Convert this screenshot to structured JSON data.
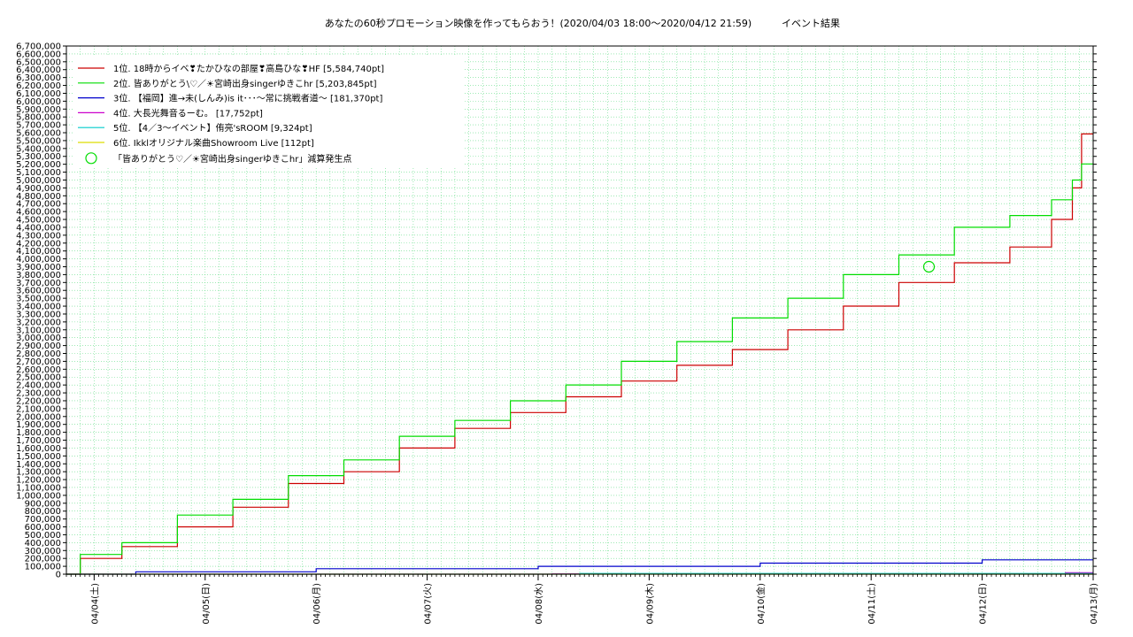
{
  "chart_data": {
    "type": "line",
    "title": "あなたの60秒プロモーション映像を作ってもらおう！(2020/04/03 18:00～2020/04/12 21:59)",
    "subtitle": "イベント結果",
    "xlabel": "",
    "ylabel": "",
    "ylim": [
      0,
      6700000
    ],
    "xlim": [
      "2020/04/03 18:00",
      "2020/04/13 00:00"
    ],
    "grid": true,
    "legend_position": "top-left",
    "x_tick_labels": [
      "04/04(土)",
      "04/05(日)",
      "04/06(月)",
      "04/07(火)",
      "04/08(水)",
      "04/09(木)",
      "04/10(金)",
      "04/11(土)",
      "04/12(日)",
      "04/13(月)"
    ],
    "y_tick_labels": [
      "0",
      "100,000",
      "200,000",
      "300,000",
      "400,000",
      "500,000",
      "600,000",
      "700,000",
      "800,000",
      "900,000",
      "1,000,000",
      "1,100,000",
      "1,200,000",
      "1,300,000",
      "1,400,000",
      "1,500,000",
      "1,600,000",
      "1,700,000",
      "1,800,000",
      "1,900,000",
      "2,000,000",
      "2,100,000",
      "2,200,000",
      "2,300,000",
      "2,400,000",
      "2,500,000",
      "2,600,000",
      "2,700,000",
      "2,800,000",
      "2,900,000",
      "3,000,000",
      "3,100,000",
      "3,200,000",
      "3,300,000",
      "3,400,000",
      "3,500,000",
      "3,600,000",
      "3,700,000",
      "3,800,000",
      "3,900,000",
      "4,000,000",
      "4,100,000",
      "4,200,000",
      "4,300,000",
      "4,400,000",
      "4,500,000",
      "4,600,000",
      "4,700,000",
      "4,800,000",
      "4,900,000",
      "5,000,000",
      "5,100,000",
      "5,200,000",
      "5,300,000",
      "5,400,000",
      "5,500,000",
      "5,600,000",
      "5,700,000",
      "5,800,000",
      "5,900,000",
      "6,000,000",
      "6,100,000",
      "6,200,000",
      "6,300,000",
      "6,400,000",
      "6,500,000",
      "6,600,000",
      "6,700,000"
    ],
    "series": [
      {
        "name": "1位. 18時からイベ❣たかひなの部屋❣高島ひな❣HF [5,584,740pt]",
        "color": "#cc0000",
        "x": [
          "2020/04/03 18:00",
          "2020/04/04 00:00",
          "2020/04/04 12:00",
          "2020/04/05 00:00",
          "2020/04/05 12:00",
          "2020/04/06 00:00",
          "2020/04/06 12:00",
          "2020/04/07 00:00",
          "2020/04/07 12:00",
          "2020/04/08 00:00",
          "2020/04/08 12:00",
          "2020/04/09 00:00",
          "2020/04/09 12:00",
          "2020/04/10 00:00",
          "2020/04/10 12:00",
          "2020/04/11 00:00",
          "2020/04/11 12:00",
          "2020/04/12 00:00",
          "2020/04/12 12:00",
          "2020/04/12 18:00",
          "2020/04/12 21:00",
          "2020/04/12 22:00",
          "2020/04/12 23:59"
        ],
        "y": [
          0,
          200000,
          350000,
          600000,
          850000,
          1150000,
          1300000,
          1600000,
          1850000,
          2050000,
          2250000,
          2450000,
          2650000,
          2850000,
          3100000,
          3400000,
          3700000,
          3950000,
          4150000,
          4500000,
          4900000,
          5584740,
          5584740
        ]
      },
      {
        "name": "2位. 皆ありがとう\\♡／☀宮崎出身singerゆきこhr [5,203,845pt]",
        "color": "#00dd00",
        "x": [
          "2020/04/03 18:00",
          "2020/04/04 00:00",
          "2020/04/04 12:00",
          "2020/04/05 00:00",
          "2020/04/05 12:00",
          "2020/04/06 00:00",
          "2020/04/06 12:00",
          "2020/04/07 00:00",
          "2020/04/07 12:00",
          "2020/04/08 00:00",
          "2020/04/08 12:00",
          "2020/04/09 00:00",
          "2020/04/09 12:00",
          "2020/04/10 00:00",
          "2020/04/10 12:00",
          "2020/04/11 00:00",
          "2020/04/11 12:00",
          "2020/04/12 00:00",
          "2020/04/12 12:00",
          "2020/04/12 18:00",
          "2020/04/12 21:00",
          "2020/04/12 22:00",
          "2020/04/12 23:59"
        ],
        "y": [
          0,
          250000,
          400000,
          750000,
          950000,
          1250000,
          1450000,
          1750000,
          1950000,
          2200000,
          2400000,
          2700000,
          2950000,
          3250000,
          3500000,
          3800000,
          4050000,
          4400000,
          4550000,
          4750000,
          5000000,
          5203845,
          5203845
        ]
      },
      {
        "name": "3位. 【福岡】進→未(しんみ)is it･･･〜常に挑戦者道〜 [181,370pt]",
        "color": "#0000cc",
        "x": [
          "2020/04/03 18:00",
          "2020/04/05 00:00",
          "2020/04/07 00:00",
          "2020/04/09 00:00",
          "2020/04/11 00:00",
          "2020/04/12 23:59"
        ],
        "y": [
          0,
          30000,
          70000,
          100000,
          140000,
          181370
        ]
      },
      {
        "name": "4位. 大長光舞音るーむ。 [17,752pt]",
        "color": "#cc00cc",
        "x": [
          "2020/04/03 18:00",
          "2020/04/12 12:00",
          "2020/04/12 23:59"
        ],
        "y": [
          0,
          5000,
          17752
        ]
      },
      {
        "name": "5位. 【4／3〜イベント】侑亮'sROOM [9,324pt]",
        "color": "#00cccc",
        "x": [
          "2020/04/03 18:00",
          "2020/04/12 23:59"
        ],
        "y": [
          0,
          9324
        ]
      },
      {
        "name": "6位. Ikklオリジナル楽曲Showroom Live [112pt]",
        "color": "#dddd00",
        "x": [
          "2020/04/03 18:00",
          "2020/04/12 23:59"
        ],
        "y": [
          0,
          112
        ]
      }
    ],
    "annotations": [
      {
        "name": "「皆ありがとう♡／☀宮崎出身singerゆきこhr」減算発生点",
        "color": "#00dd00",
        "x": "2020/04/11 12:30",
        "y": 3900000
      }
    ]
  }
}
